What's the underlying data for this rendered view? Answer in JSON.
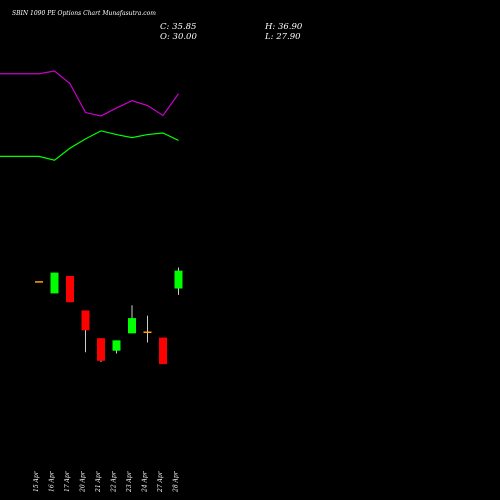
{
  "title": "SBIN 1090 PE Options Chart Munafasutra.com",
  "ohlc": {
    "close_label": "C: 35.85",
    "open_label": "O: 30.00",
    "high_label": "H: 36.90",
    "low_label": "L: 27.90"
  },
  "colors": {
    "background": "#000000",
    "up": "#00ff00",
    "down": "#ff0000",
    "upper_line": "#00ff00",
    "lower_line": "#cc00cc",
    "text": "#ffffff"
  },
  "chart_data": {
    "type": "candlestick",
    "categories": [
      "15 Apr",
      "16 Apr",
      "17 Apr",
      "20 Apr",
      "21 Apr",
      "22 Apr",
      "23 Apr",
      "24 Apr",
      "27 Apr",
      "28 Apr"
    ],
    "candles": [
      {
        "date": "15 Apr",
        "open": 32.4,
        "high": 32.4,
        "low": 32.4,
        "close": 32.4
      },
      {
        "date": "16 Apr",
        "open": 28.4,
        "high": 35.2,
        "low": 28.4,
        "close": 35.2
      },
      {
        "date": "17 Apr",
        "open": 34.1,
        "high": 34.1,
        "low": 25.5,
        "close": 25.5
      },
      {
        "date": "20 Apr",
        "open": 22.8,
        "high": 22.8,
        "low": 9.1,
        "close": 16.3
      },
      {
        "date": "21 Apr",
        "open": 13.7,
        "high": 13.7,
        "low": 5.9,
        "close": 6.3
      },
      {
        "date": "22 Apr",
        "open": 9.6,
        "high": 13.0,
        "low": 8.7,
        "close": 13.0
      },
      {
        "date": "23 Apr",
        "open": 15.3,
        "high": 24.5,
        "low": 15.3,
        "close": 20.3
      },
      {
        "date": "24 Apr",
        "open": 15.9,
        "high": 21.1,
        "low": 12.3,
        "close": 15.9
      },
      {
        "date": "27 Apr",
        "open": 13.9,
        "high": 13.9,
        "low": 5.2,
        "close": 5.2
      },
      {
        "date": "28 Apr",
        "open": 30.0,
        "high": 36.9,
        "low": 27.9,
        "close": 35.85
      }
    ],
    "upper_line": [
      -8.4,
      -8.4,
      -13.5,
      2.4,
      14.6,
      25.2,
      20.3,
      16.3,
      20.3,
      22.4,
      12.6
    ],
    "lower_line": [
      100.3,
      100.3,
      103.9,
      87.3,
      49.3,
      44.8,
      55.3,
      64.9,
      58.5,
      45.4,
      74.0
    ],
    "line_x_index": [
      -1,
      0,
      1,
      2,
      3,
      4,
      5,
      6,
      7,
      8,
      9
    ],
    "grid": false
  }
}
